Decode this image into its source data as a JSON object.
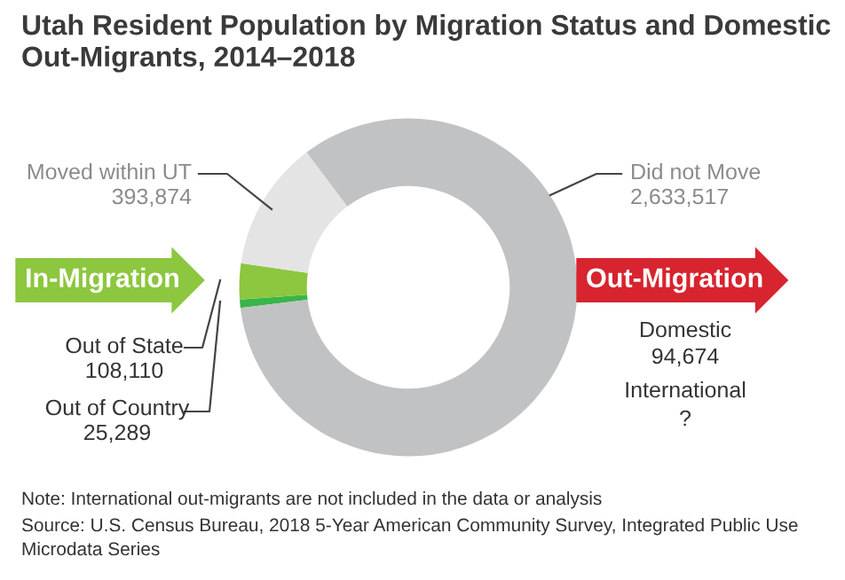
{
  "chart_data": {
    "type": "donut",
    "title": "Utah Resident Population by Migration Status and Domestic Out-Migrants, 2014–2018",
    "categories": [
      "Out of Country",
      "Out of State",
      "Moved within UT",
      "Did not Move"
    ],
    "values": [
      25289,
      108110,
      393874,
      2633517
    ],
    "colors": [
      "#39b54a",
      "#8dc63f",
      "#e4e4e5",
      "#c1c2c4"
    ],
    "value_labels": [
      "25,289",
      "108,110",
      "393,874",
      "2,633,517"
    ],
    "annotations": [
      "In-Migration",
      "Out-Migration",
      "Domestic",
      "94,674",
      "International",
      "?",
      "Note: International out-migrants are not included in the data or analysis",
      "Source: U.S. Census Bureau, 2018 5-Year American Community Survey, Integrated Public Use Microdata Series"
    ]
  }
}
